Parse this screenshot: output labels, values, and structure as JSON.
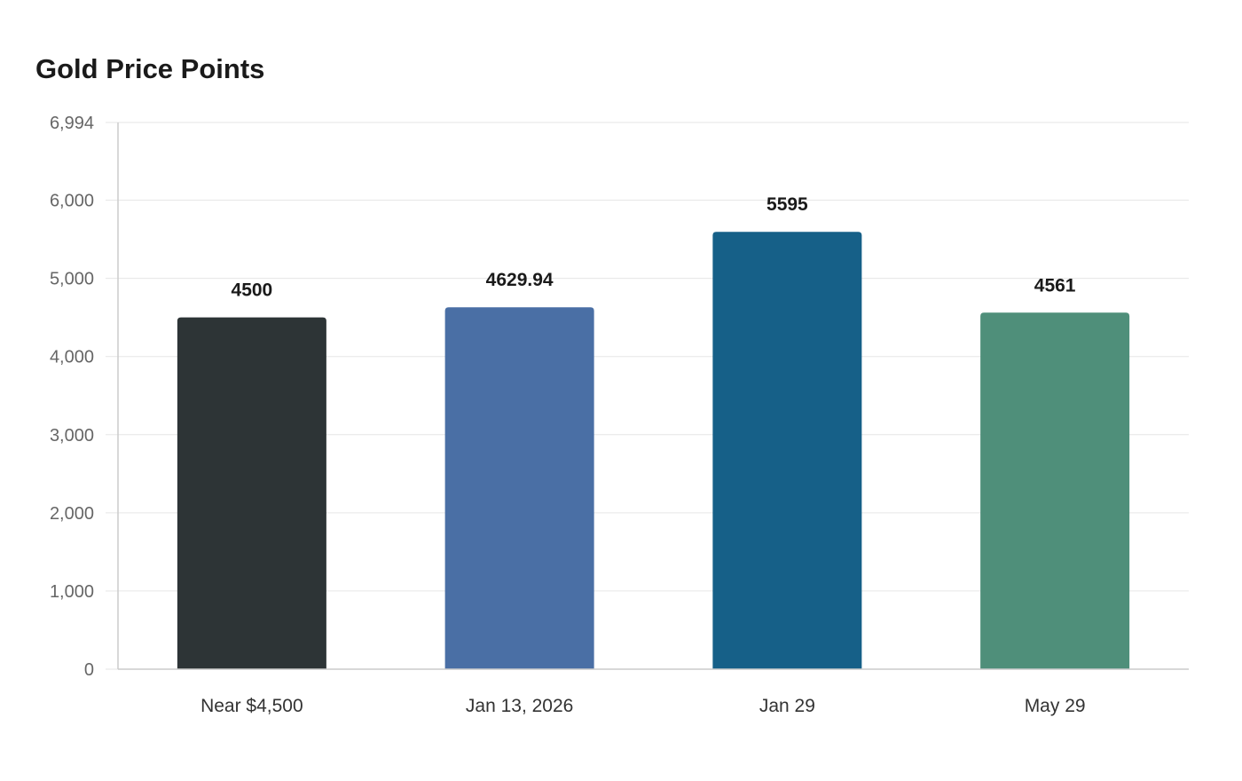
{
  "chart_data": {
    "type": "bar",
    "title": "Gold Price Points",
    "xlabel": "",
    "ylabel": "",
    "categories": [
      "Near $4,500",
      "Jan 13, 2026",
      "Jan 29",
      "May 29"
    ],
    "values": [
      4500,
      4629.94,
      5595,
      4561
    ],
    "value_labels": [
      "4500",
      "4629.94",
      "5595",
      "4561"
    ],
    "colors": [
      "#2d3436",
      "#4a6fa5",
      "#166088",
      "#4f8f7a"
    ],
    "ylim": [
      0,
      6994
    ],
    "yticks": [
      0,
      1000,
      2000,
      3000,
      4000,
      5000,
      6000,
      6994
    ],
    "ytick_labels": [
      "0",
      "1,000",
      "2,000",
      "3,000",
      "4,000",
      "5,000",
      "6,000",
      "6,994"
    ],
    "grid": true,
    "legend": "none"
  }
}
